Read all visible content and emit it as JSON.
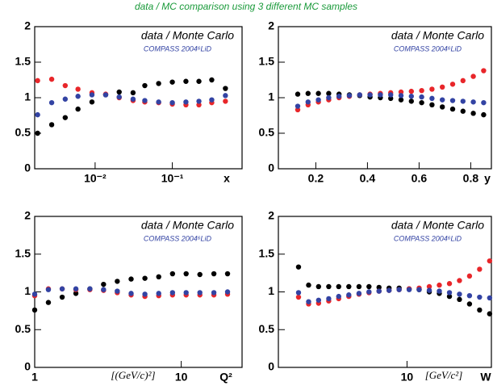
{
  "title": "data / MC comparison using 3 different MC samples",
  "chart_data": [
    {
      "type": "scatter",
      "annotations": [
        "data / Monte Carlo",
        "COMPASS 2004⁶LiD"
      ],
      "xlabel": "x",
      "xscale": "log",
      "xlim": [
        0.00165,
        0.8
      ],
      "xticks": [
        {
          "value": 0.01,
          "label": "10⁻²"
        },
        {
          "value": 0.1,
          "label": "10⁻¹"
        }
      ],
      "ylim": [
        0,
        2
      ],
      "yticks": [
        0,
        0.5,
        1,
        1.5,
        2
      ],
      "x": [
        0.0018,
        0.00274,
        0.0041,
        0.006,
        0.0091,
        0.0137,
        0.0205,
        0.031,
        0.044,
        0.0665,
        0.1,
        0.15,
        0.221,
        0.324,
        0.487
      ],
      "series": [
        {
          "color": "#000000",
          "values": [
            0.5,
            0.62,
            0.72,
            0.84,
            0.94,
            1.04,
            1.08,
            1.07,
            1.17,
            1.2,
            1.22,
            1.23,
            1.23,
            1.25,
            1.13
          ]
        },
        {
          "color": "#e8262a",
          "values": [
            1.24,
            1.26,
            1.17,
            1.12,
            1.07,
            1.05,
            1.0,
            0.96,
            0.94,
            0.93,
            0.91,
            0.9,
            0.9,
            0.93,
            0.95
          ]
        },
        {
          "color": "#3343a3",
          "values": [
            0.76,
            0.93,
            0.98,
            1.02,
            1.04,
            1.04,
            1.01,
            0.98,
            0.96,
            0.94,
            0.93,
            0.94,
            0.95,
            0.97,
            1.03
          ]
        }
      ]
    },
    {
      "type": "scatter",
      "annotations": [
        "data / Monte Carlo",
        "COMPASS 2004⁶LiD"
      ],
      "xlabel": "y",
      "xscale": "linear",
      "xlim": [
        0.055,
        0.88
      ],
      "xticks": [
        0.2,
        0.4,
        0.6,
        0.8
      ],
      "ylim": [
        0,
        2
      ],
      "yticks": [
        0,
        0.5,
        1,
        1.5,
        2
      ],
      "x": [
        0.13,
        0.17,
        0.21,
        0.25,
        0.29,
        0.33,
        0.37,
        0.41,
        0.45,
        0.49,
        0.53,
        0.57,
        0.61,
        0.65,
        0.69,
        0.73,
        0.77,
        0.81,
        0.85
      ],
      "series": [
        {
          "color": "#000000",
          "values": [
            1.05,
            1.06,
            1.06,
            1.06,
            1.05,
            1.04,
            1.03,
            1.01,
            1.0,
            0.99,
            0.97,
            0.95,
            0.93,
            0.9,
            0.87,
            0.84,
            0.81,
            0.78,
            0.76
          ]
        },
        {
          "color": "#e8262a",
          "values": [
            0.83,
            0.9,
            0.94,
            0.97,
            1.0,
            1.02,
            1.04,
            1.05,
            1.06,
            1.07,
            1.08,
            1.09,
            1.1,
            1.12,
            1.15,
            1.19,
            1.24,
            1.3,
            1.38
          ]
        },
        {
          "color": "#3343a3",
          "values": [
            0.88,
            0.94,
            0.97,
            1.0,
            1.02,
            1.03,
            1.04,
            1.04,
            1.04,
            1.04,
            1.03,
            1.02,
            1.01,
            0.99,
            0.97,
            0.96,
            0.95,
            0.94,
            0.93
          ]
        }
      ]
    },
    {
      "type": "scatter",
      "annotations": [
        "data / Monte Carlo",
        "COMPASS 2004⁶LiD"
      ],
      "xlabel": "Q²",
      "xunit": "[(GeV/c)²]",
      "xscale": "log",
      "xlim": [
        1,
        26
      ],
      "xticks": [
        1,
        10
      ],
      "ylim": [
        0,
        2
      ],
      "yticks": [
        0,
        0.5,
        1,
        1.5,
        2
      ],
      "x": [
        1,
        1.24,
        1.54,
        1.91,
        2.38,
        2.95,
        3.66,
        4.55,
        5.65,
        7.02,
        8.72,
        10.8,
        13.4,
        16.7,
        20.7
      ],
      "series": [
        {
          "color": "#000000",
          "values": [
            0.76,
            0.86,
            0.93,
            0.98,
            1.04,
            1.1,
            1.14,
            1.17,
            1.18,
            1.2,
            1.24,
            1.24,
            1.23,
            1.24,
            1.24
          ]
        },
        {
          "color": "#e8262a",
          "values": [
            0.95,
            1.04,
            1.04,
            1.03,
            1.03,
            1.02,
            0.99,
            0.96,
            0.94,
            0.95,
            0.96,
            0.96,
            0.96,
            0.96,
            0.97
          ]
        },
        {
          "color": "#3343a3",
          "values": [
            0.97,
            1.03,
            1.04,
            1.04,
            1.04,
            1.03,
            1.01,
            0.98,
            0.97,
            0.98,
            0.99,
            0.99,
            0.99,
            0.99,
            1.0
          ]
        }
      ]
    },
    {
      "type": "scatter",
      "annotations": [
        "data / Monte Carlo",
        "COMPASS 2004⁶LiD"
      ],
      "xlabel": "W",
      "xunit": "[GeV/c²]",
      "xscale": "log",
      "xlim": [
        5.5,
        14.8
      ],
      "xticks": [
        10
      ],
      "ylim": [
        0,
        2
      ],
      "yticks": [
        0,
        0.5,
        1,
        1.5,
        2
      ],
      "x": [
        6.04,
        6.33,
        6.63,
        6.95,
        7.28,
        7.63,
        8.0,
        8.38,
        8.78,
        9.2,
        9.64,
        10.1,
        10.58,
        11.09,
        11.62,
        12.18,
        12.76,
        13.37,
        14.01,
        14.68
      ],
      "series": [
        {
          "color": "#000000",
          "values": [
            1.33,
            1.09,
            1.07,
            1.07,
            1.07,
            1.07,
            1.07,
            1.07,
            1.06,
            1.05,
            1.05,
            1.04,
            1.03,
            1.0,
            0.98,
            0.94,
            0.9,
            0.84,
            0.76,
            0.71
          ]
        },
        {
          "color": "#e8262a",
          "values": [
            0.93,
            0.84,
            0.85,
            0.88,
            0.91,
            0.94,
            0.97,
            0.99,
            1.01,
            1.02,
            1.03,
            1.04,
            1.05,
            1.07,
            1.09,
            1.11,
            1.15,
            1.21,
            1.3,
            1.41
          ]
        },
        {
          "color": "#3343a3",
          "values": [
            0.99,
            0.87,
            0.89,
            0.91,
            0.94,
            0.96,
            0.98,
            1.0,
            1.01,
            1.02,
            1.03,
            1.03,
            1.03,
            1.02,
            1.01,
            0.99,
            0.97,
            0.95,
            0.93,
            0.92
          ]
        }
      ]
    }
  ]
}
